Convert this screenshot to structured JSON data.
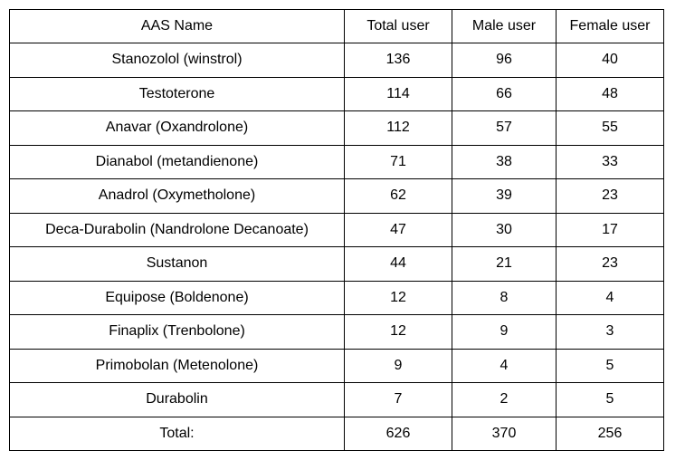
{
  "table": {
    "headers": [
      "AAS Name",
      "Total user",
      "Male user",
      "Female user"
    ],
    "rows": [
      {
        "name": "Stanozolol (winstrol)",
        "total": "136",
        "male": "96",
        "female": "40"
      },
      {
        "name": "Testoterone",
        "total": "114",
        "male": "66",
        "female": "48"
      },
      {
        "name": "Anavar (Oxandrolone)",
        "total": "112",
        "male": "57",
        "female": "55"
      },
      {
        "name": "Dianabol (metandienone)",
        "total": "71",
        "male": "38",
        "female": "33"
      },
      {
        "name": "Anadrol (Oxymetholone)",
        "total": "62",
        "male": "39",
        "female": "23"
      },
      {
        "name": "Deca-Durabolin (Nandrolone Decanoate)",
        "total": "47",
        "male": "30",
        "female": "17"
      },
      {
        "name": "Sustanon",
        "total": "44",
        "male": "21",
        "female": "23"
      },
      {
        "name": "Equipose (Boldenone)",
        "total": "12",
        "male": "8",
        "female": "4"
      },
      {
        "name": "Finaplix (Trenbolone)",
        "total": "12",
        "male": "9",
        "female": "3"
      },
      {
        "name": "Primobolan (Metenolone)",
        "total": "9",
        "male": "4",
        "female": "5"
      },
      {
        "name": "Durabolin",
        "total": "7",
        "male": "2",
        "female": "5"
      }
    ],
    "totals": {
      "label": "Total:",
      "total": "626",
      "male": "370",
      "female": "256"
    }
  }
}
